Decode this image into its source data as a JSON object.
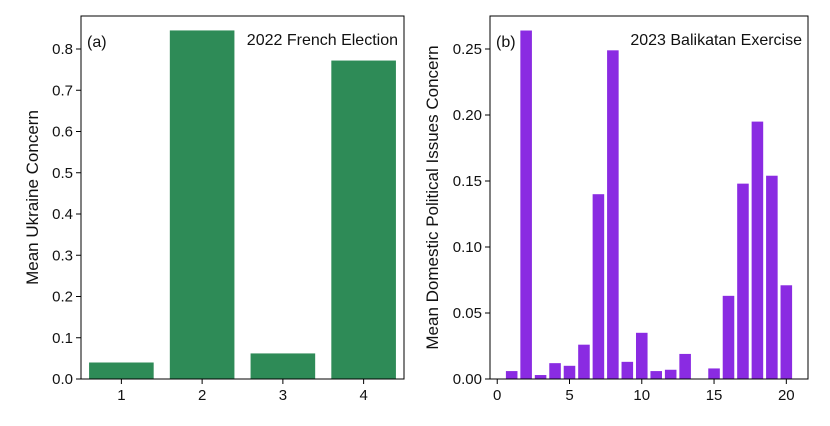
{
  "chart_data": [
    {
      "type": "bar",
      "panel_label": "(a)",
      "annotation": "2022 French Election",
      "categories": [
        "1",
        "2",
        "3",
        "4"
      ],
      "x": [
        1,
        2,
        3,
        4
      ],
      "values": [
        0.04,
        0.845,
        0.062,
        0.772
      ],
      "ylabel": "Mean Ukraine Concern",
      "xlabel": "",
      "ylim": [
        0.0,
        0.88
      ],
      "xlim": [
        0.5,
        4.5
      ],
      "yticks": [
        "0.0",
        "0.1",
        "0.2",
        "0.3",
        "0.4",
        "0.5",
        "0.6",
        "0.7",
        "0.8"
      ],
      "xticks": [
        "1",
        "2",
        "3",
        "4"
      ],
      "color": "#2e8b57",
      "grid": false
    },
    {
      "type": "bar",
      "panel_label": "(b)",
      "annotation": "2023 Balikatan Exercise",
      "x": [
        1,
        2,
        3,
        4,
        5,
        6,
        7,
        8,
        9,
        10,
        11,
        12,
        13,
        14,
        15,
        16,
        17,
        18,
        19,
        20
      ],
      "values": [
        0.006,
        0.264,
        0.003,
        0.012,
        0.01,
        0.026,
        0.14,
        0.249,
        0.013,
        0.035,
        0.006,
        0.007,
        0.019,
        0.0,
        0.008,
        0.063,
        0.148,
        0.195,
        0.154,
        0.071
      ],
      "ylabel": "Mean Domestic Political Issues Concern",
      "xlabel": "",
      "ylim": [
        0.0,
        0.275
      ],
      "xlim": [
        -0.5,
        21.5
      ],
      "yticks": [
        "0.00",
        "0.05",
        "0.10",
        "0.15",
        "0.20",
        "0.25"
      ],
      "xticks": [
        "0",
        "5",
        "10",
        "15",
        "20"
      ],
      "color": "#8a2be2",
      "grid": false
    }
  ]
}
